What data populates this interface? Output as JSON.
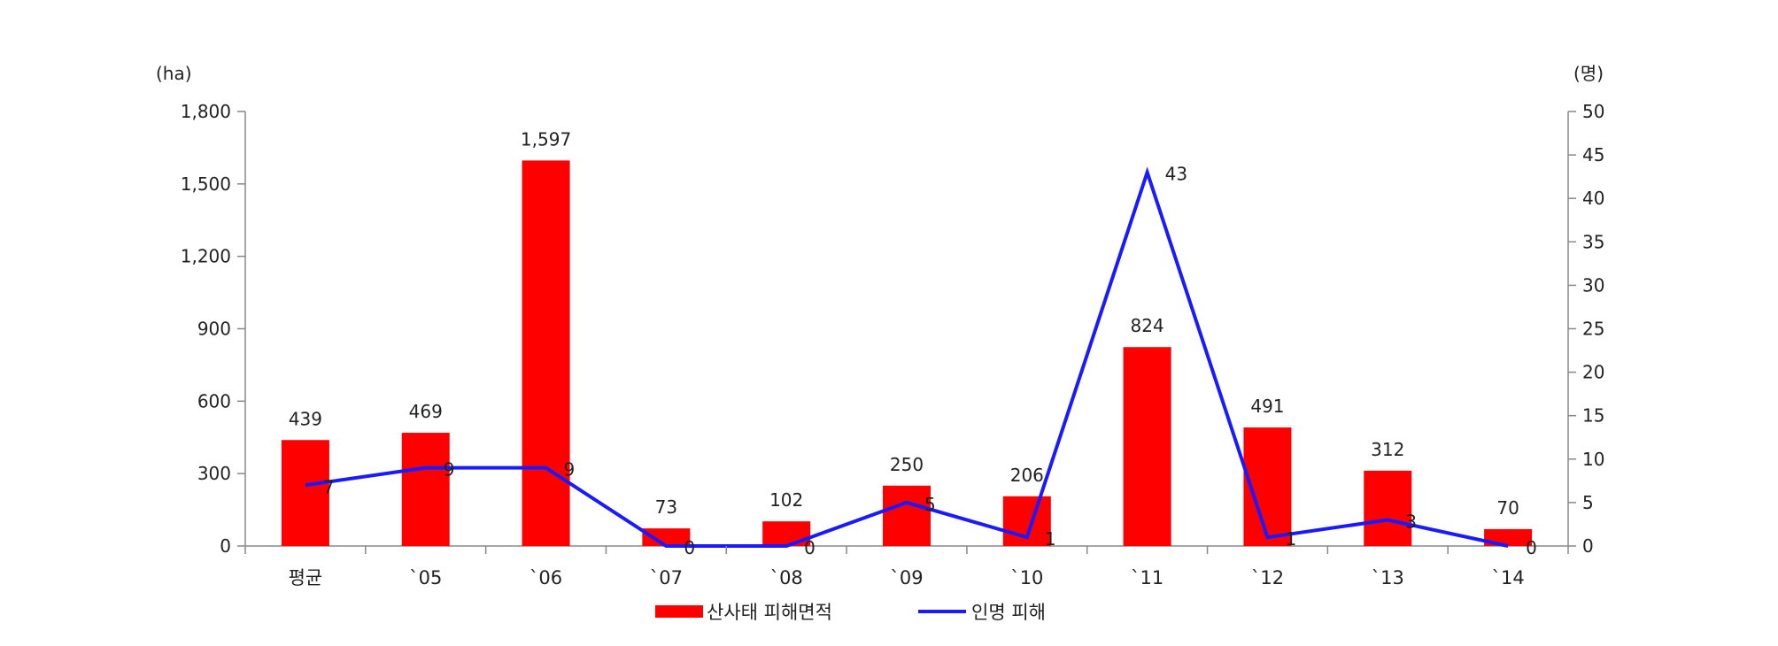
{
  "chart_data": {
    "type": "bar",
    "categories": [
      "평균",
      "`05",
      "`06",
      "`07",
      "`08",
      "`09",
      "`10",
      "`11",
      "`12",
      "`13",
      "`14"
    ],
    "series": [
      {
        "name": "산사태 피해면적",
        "type": "bar",
        "axis": "left",
        "color": "#ff0000",
        "values": [
          439,
          469,
          1597,
          73,
          102,
          250,
          206,
          824,
          491,
          312,
          70
        ],
        "labels": [
          "439",
          "469",
          "1,597",
          "73",
          "102",
          "250",
          "206",
          "824",
          "491",
          "312",
          "70"
        ]
      },
      {
        "name": "인명 피해",
        "type": "line",
        "axis": "right",
        "color": "#1a1aff",
        "values": [
          7,
          9,
          9,
          0,
          0,
          5,
          1,
          43,
          1,
          3,
          0
        ],
        "labels": [
          "7",
          "9",
          "9",
          "0",
          "0",
          "5",
          "1",
          "43",
          "1",
          "3",
          "0"
        ]
      }
    ],
    "y_left": {
      "unit": "(ha)",
      "ylim": [
        0,
        1800
      ],
      "ticks": [
        0,
        300,
        600,
        900,
        1200,
        1500,
        1800
      ],
      "tick_labels": [
        "0",
        "300",
        "600",
        "900",
        "1,200",
        "1,500",
        "1,800"
      ]
    },
    "y_right": {
      "unit": "(명)",
      "ylim": [
        0,
        50
      ],
      "ticks": [
        0,
        5,
        10,
        15,
        20,
        25,
        30,
        35,
        40,
        45,
        50
      ],
      "tick_labels": [
        "0",
        "5",
        "10",
        "15",
        "20",
        "25",
        "30",
        "35",
        "40",
        "45",
        "50"
      ]
    },
    "grid": false,
    "legend": "bottom"
  }
}
